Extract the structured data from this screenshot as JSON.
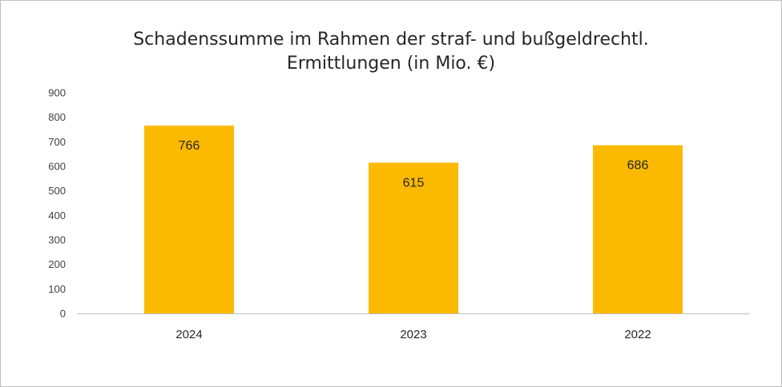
{
  "chart_data": {
    "type": "bar",
    "title": "Schadenssumme im Rahmen der straf- und bußgeldrechtl. Ermittlungen (in Mio. €)",
    "title_lines": [
      "Schadenssumme im Rahmen der straf- und bußgeldrechtl.",
      "Ermittlungen (in Mio. €)"
    ],
    "categories": [
      "2024",
      "2023",
      "2022"
    ],
    "values": [
      766,
      615,
      686
    ],
    "xlabel": "",
    "ylabel": "",
    "ylim": [
      0,
      900
    ],
    "yticks": [
      0,
      100,
      200,
      300,
      400,
      500,
      600,
      700,
      800,
      900
    ],
    "grid": false,
    "legend": "none",
    "colors": {
      "bar": "#FBBA00",
      "axis": "#bfbfbf",
      "text": "#262626"
    }
  }
}
